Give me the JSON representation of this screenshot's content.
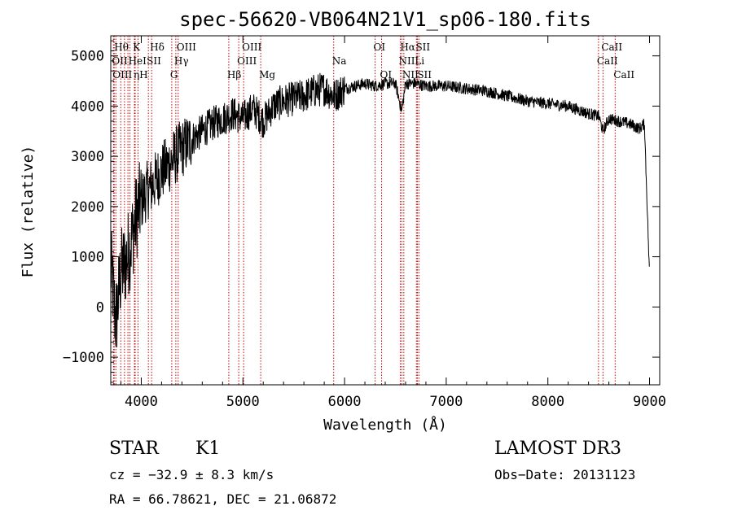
{
  "chart_data": {
    "type": "line",
    "title": "spec-56620-VB064N21V1_sp06-180.fits",
    "xlabel": "Wavelength (Å)",
    "ylabel": "Flux (relative)",
    "xlim": [
      3700,
      9100
    ],
    "ylim": [
      -1550,
      5400
    ],
    "x_ticks": [
      4000,
      5000,
      6000,
      7000,
      8000,
      9000
    ],
    "x_tick_labels": [
      "4000",
      "5000",
      "6000",
      "7000",
      "8000",
      "9000"
    ],
    "y_ticks": [
      -1000,
      0,
      1000,
      2000,
      3000,
      4000,
      5000
    ],
    "y_tick_labels": [
      "−1000",
      "0",
      "1000",
      "2000",
      "3000",
      "4000",
      "5000"
    ],
    "series": [
      {
        "name": "flux",
        "x": [
          3700,
          3750,
          3800,
          3850,
          3900,
          3950,
          4000,
          4050,
          4100,
          4150,
          4200,
          4250,
          4300,
          4350,
          4400,
          4450,
          4500,
          4600,
          4700,
          4800,
          4900,
          5000,
          5100,
          5200,
          5300,
          5400,
          5500,
          5600,
          5700,
          5800,
          5900,
          6000,
          6100,
          6200,
          6300,
          6400,
          6500,
          6563,
          6600,
          6700,
          6800,
          6900,
          7000,
          7200,
          7400,
          7600,
          7800,
          8000,
          8200,
          8400,
          8500,
          8542,
          8600,
          8700,
          8800,
          8900,
          8950,
          9000
        ],
        "y": [
          800,
          -300,
          700,
          900,
          1300,
          1800,
          2100,
          2300,
          2400,
          2550,
          2700,
          2800,
          2900,
          3050,
          3150,
          3250,
          3350,
          3500,
          3650,
          3750,
          3850,
          3750,
          3950,
          3700,
          4000,
          4100,
          4150,
          4200,
          4300,
          4350,
          4200,
          4350,
          4400,
          4450,
          4400,
          4450,
          4450,
          3900,
          4450,
          4450,
          4400,
          4400,
          4400,
          4350,
          4300,
          4200,
          4100,
          4050,
          4000,
          3850,
          3800,
          3500,
          3750,
          3700,
          3650,
          3550,
          3650,
          600
        ]
      }
    ],
    "lines": [
      {
        "x": 3750,
        "label": "Hθ",
        "row": 0
      },
      {
        "x": 3727,
        "label": "OII",
        "row": 1
      },
      {
        "x": 3734,
        "label": "OIII",
        "row": 2
      },
      {
        "x": 3798,
        "label": "",
        "row": 0
      },
      {
        "x": 3835,
        "label": "",
        "row": 0
      },
      {
        "x": 3869,
        "label": "",
        "row": 0
      },
      {
        "x": 3889,
        "label": "HeI",
        "row": 1
      },
      {
        "x": 3933,
        "label": "K",
        "row": 0
      },
      {
        "x": 3940,
        "label": "ηH",
        "row": 2
      },
      {
        "x": 3968,
        "label": "",
        "row": 0
      },
      {
        "x": 4070,
        "label": "SII",
        "row": 1
      },
      {
        "x": 4102,
        "label": "Hδ",
        "row": 0
      },
      {
        "x": 4300,
        "label": "G",
        "row": 2
      },
      {
        "x": 4340,
        "label": "Hγ",
        "row": 1
      },
      {
        "x": 4363,
        "label": "OIII",
        "row": 0
      },
      {
        "x": 4861,
        "label": "Hβ",
        "row": 2
      },
      {
        "x": 4959,
        "label": "OIII",
        "row": 1
      },
      {
        "x": 5007,
        "label": "OIII",
        "row": 0
      },
      {
        "x": 5175,
        "label": "Mg",
        "row": 2
      },
      {
        "x": 5893,
        "label": "Na",
        "row": 1
      },
      {
        "x": 6300,
        "label": "OI",
        "row": 0
      },
      {
        "x": 6364,
        "label": "OI",
        "row": 2
      },
      {
        "x": 6548,
        "label": "NII",
        "row": 1
      },
      {
        "x": 6563,
        "label": "Hα",
        "row": 0
      },
      {
        "x": 6583,
        "label": "NII",
        "row": 2
      },
      {
        "x": 6707,
        "label": "Li",
        "row": 1
      },
      {
        "x": 6716,
        "label": "SII",
        "row": 0
      },
      {
        "x": 6731,
        "label": "SII",
        "row": 2
      },
      {
        "x": 8498,
        "label": "CaII",
        "row": 1
      },
      {
        "x": 8542,
        "label": "CaII",
        "row": 0
      },
      {
        "x": 8662,
        "label": "CaII",
        "row": 2
      }
    ]
  },
  "info": {
    "class_label": "STAR",
    "subclass_label": "K1",
    "survey_label": "LAMOST DR3",
    "cz_text": "cz = −32.9 ± 8.3 km/s",
    "obs_date_text": "Obs−Date: 20131123",
    "radec_text": "RA =  66.78621, DEC =  21.06872"
  },
  "colors": {
    "axis": "#000000",
    "spectrum": "#000000",
    "line_marker": "#cc0000",
    "background": "#ffffff"
  }
}
